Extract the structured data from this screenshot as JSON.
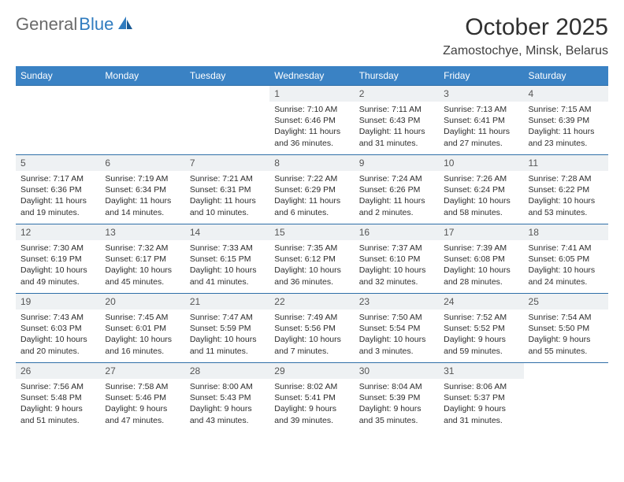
{
  "logo": {
    "part1": "General",
    "part2": "Blue"
  },
  "title": "October 2025",
  "location": "Zamostochye, Minsk, Belarus",
  "day_headers": [
    "Sunday",
    "Monday",
    "Tuesday",
    "Wednesday",
    "Thursday",
    "Friday",
    "Saturday"
  ],
  "colors": {
    "header_bg": "#3a82c4",
    "header_text": "#ffffff",
    "daynum_bg": "#eef1f3",
    "row_border": "#2f6fa8",
    "logo_gray": "#6a6a6a",
    "logo_blue": "#2f7bbf"
  },
  "weeks": [
    [
      {
        "n": "",
        "empty": true
      },
      {
        "n": "",
        "empty": true
      },
      {
        "n": "",
        "empty": true
      },
      {
        "n": "1",
        "sunrise": "Sunrise: 7:10 AM",
        "sunset": "Sunset: 6:46 PM",
        "daylight": "Daylight: 11 hours and 36 minutes."
      },
      {
        "n": "2",
        "sunrise": "Sunrise: 7:11 AM",
        "sunset": "Sunset: 6:43 PM",
        "daylight": "Daylight: 11 hours and 31 minutes."
      },
      {
        "n": "3",
        "sunrise": "Sunrise: 7:13 AM",
        "sunset": "Sunset: 6:41 PM",
        "daylight": "Daylight: 11 hours and 27 minutes."
      },
      {
        "n": "4",
        "sunrise": "Sunrise: 7:15 AM",
        "sunset": "Sunset: 6:39 PM",
        "daylight": "Daylight: 11 hours and 23 minutes."
      }
    ],
    [
      {
        "n": "5",
        "sunrise": "Sunrise: 7:17 AM",
        "sunset": "Sunset: 6:36 PM",
        "daylight": "Daylight: 11 hours and 19 minutes."
      },
      {
        "n": "6",
        "sunrise": "Sunrise: 7:19 AM",
        "sunset": "Sunset: 6:34 PM",
        "daylight": "Daylight: 11 hours and 14 minutes."
      },
      {
        "n": "7",
        "sunrise": "Sunrise: 7:21 AM",
        "sunset": "Sunset: 6:31 PM",
        "daylight": "Daylight: 11 hours and 10 minutes."
      },
      {
        "n": "8",
        "sunrise": "Sunrise: 7:22 AM",
        "sunset": "Sunset: 6:29 PM",
        "daylight": "Daylight: 11 hours and 6 minutes."
      },
      {
        "n": "9",
        "sunrise": "Sunrise: 7:24 AM",
        "sunset": "Sunset: 6:26 PM",
        "daylight": "Daylight: 11 hours and 2 minutes."
      },
      {
        "n": "10",
        "sunrise": "Sunrise: 7:26 AM",
        "sunset": "Sunset: 6:24 PM",
        "daylight": "Daylight: 10 hours and 58 minutes."
      },
      {
        "n": "11",
        "sunrise": "Sunrise: 7:28 AM",
        "sunset": "Sunset: 6:22 PM",
        "daylight": "Daylight: 10 hours and 53 minutes."
      }
    ],
    [
      {
        "n": "12",
        "sunrise": "Sunrise: 7:30 AM",
        "sunset": "Sunset: 6:19 PM",
        "daylight": "Daylight: 10 hours and 49 minutes."
      },
      {
        "n": "13",
        "sunrise": "Sunrise: 7:32 AM",
        "sunset": "Sunset: 6:17 PM",
        "daylight": "Daylight: 10 hours and 45 minutes."
      },
      {
        "n": "14",
        "sunrise": "Sunrise: 7:33 AM",
        "sunset": "Sunset: 6:15 PM",
        "daylight": "Daylight: 10 hours and 41 minutes."
      },
      {
        "n": "15",
        "sunrise": "Sunrise: 7:35 AM",
        "sunset": "Sunset: 6:12 PM",
        "daylight": "Daylight: 10 hours and 36 minutes."
      },
      {
        "n": "16",
        "sunrise": "Sunrise: 7:37 AM",
        "sunset": "Sunset: 6:10 PM",
        "daylight": "Daylight: 10 hours and 32 minutes."
      },
      {
        "n": "17",
        "sunrise": "Sunrise: 7:39 AM",
        "sunset": "Sunset: 6:08 PM",
        "daylight": "Daylight: 10 hours and 28 minutes."
      },
      {
        "n": "18",
        "sunrise": "Sunrise: 7:41 AM",
        "sunset": "Sunset: 6:05 PM",
        "daylight": "Daylight: 10 hours and 24 minutes."
      }
    ],
    [
      {
        "n": "19",
        "sunrise": "Sunrise: 7:43 AM",
        "sunset": "Sunset: 6:03 PM",
        "daylight": "Daylight: 10 hours and 20 minutes."
      },
      {
        "n": "20",
        "sunrise": "Sunrise: 7:45 AM",
        "sunset": "Sunset: 6:01 PM",
        "daylight": "Daylight: 10 hours and 16 minutes."
      },
      {
        "n": "21",
        "sunrise": "Sunrise: 7:47 AM",
        "sunset": "Sunset: 5:59 PM",
        "daylight": "Daylight: 10 hours and 11 minutes."
      },
      {
        "n": "22",
        "sunrise": "Sunrise: 7:49 AM",
        "sunset": "Sunset: 5:56 PM",
        "daylight": "Daylight: 10 hours and 7 minutes."
      },
      {
        "n": "23",
        "sunrise": "Sunrise: 7:50 AM",
        "sunset": "Sunset: 5:54 PM",
        "daylight": "Daylight: 10 hours and 3 minutes."
      },
      {
        "n": "24",
        "sunrise": "Sunrise: 7:52 AM",
        "sunset": "Sunset: 5:52 PM",
        "daylight": "Daylight: 9 hours and 59 minutes."
      },
      {
        "n": "25",
        "sunrise": "Sunrise: 7:54 AM",
        "sunset": "Sunset: 5:50 PM",
        "daylight": "Daylight: 9 hours and 55 minutes."
      }
    ],
    [
      {
        "n": "26",
        "sunrise": "Sunrise: 7:56 AM",
        "sunset": "Sunset: 5:48 PM",
        "daylight": "Daylight: 9 hours and 51 minutes."
      },
      {
        "n": "27",
        "sunrise": "Sunrise: 7:58 AM",
        "sunset": "Sunset: 5:46 PM",
        "daylight": "Daylight: 9 hours and 47 minutes."
      },
      {
        "n": "28",
        "sunrise": "Sunrise: 8:00 AM",
        "sunset": "Sunset: 5:43 PM",
        "daylight": "Daylight: 9 hours and 43 minutes."
      },
      {
        "n": "29",
        "sunrise": "Sunrise: 8:02 AM",
        "sunset": "Sunset: 5:41 PM",
        "daylight": "Daylight: 9 hours and 39 minutes."
      },
      {
        "n": "30",
        "sunrise": "Sunrise: 8:04 AM",
        "sunset": "Sunset: 5:39 PM",
        "daylight": "Daylight: 9 hours and 35 minutes."
      },
      {
        "n": "31",
        "sunrise": "Sunrise: 8:06 AM",
        "sunset": "Sunset: 5:37 PM",
        "daylight": "Daylight: 9 hours and 31 minutes."
      },
      {
        "n": "",
        "empty": true,
        "trailing": true
      }
    ]
  ]
}
